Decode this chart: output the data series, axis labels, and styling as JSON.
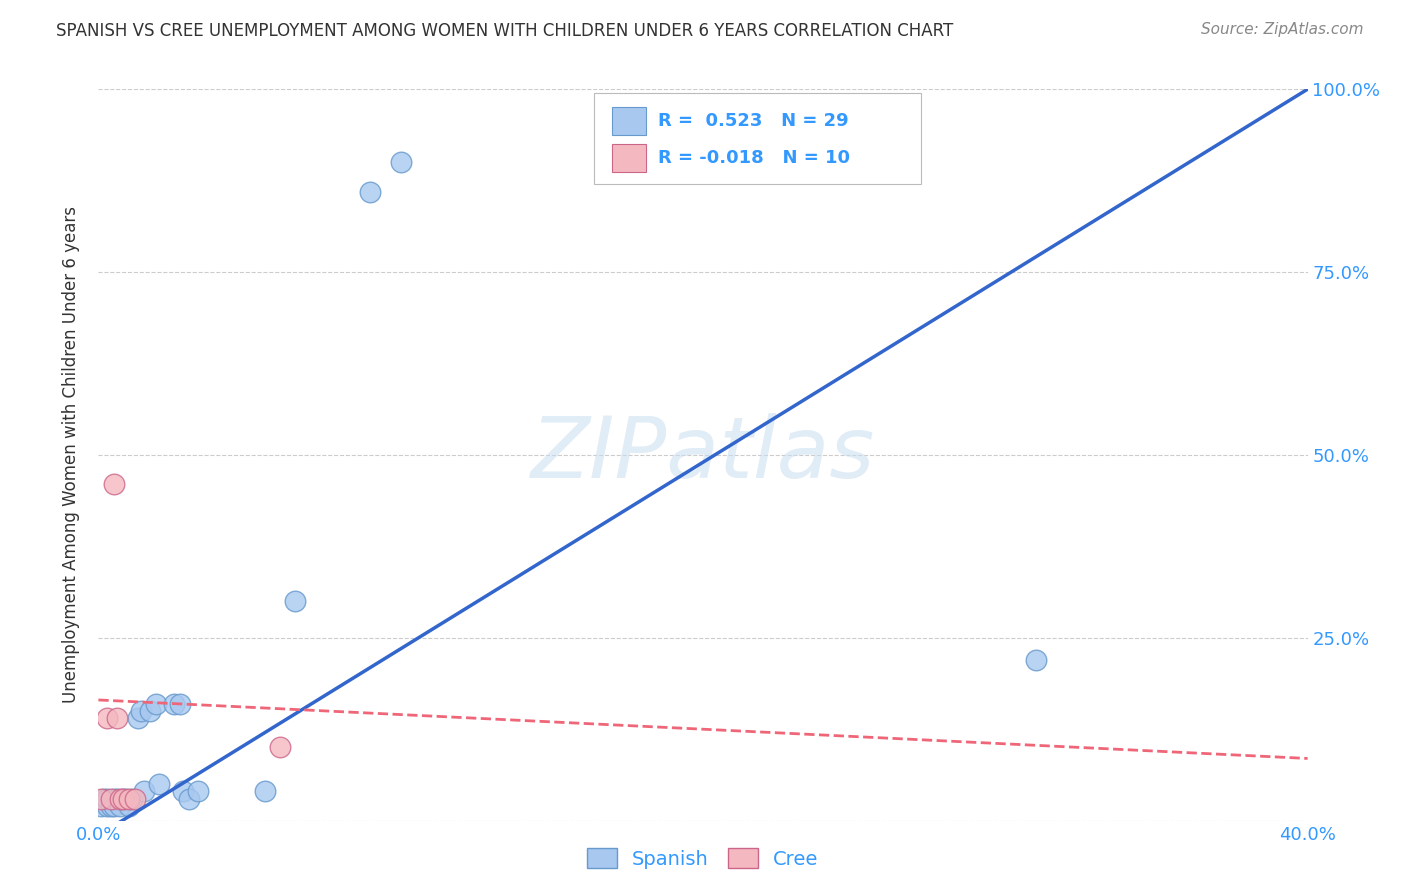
{
  "title": "SPANISH VS CREE UNEMPLOYMENT AMONG WOMEN WITH CHILDREN UNDER 6 YEARS CORRELATION CHART",
  "source": "Source: ZipAtlas.com",
  "ylabel": "Unemployment Among Women with Children Under 6 years",
  "watermark": "ZIPatlas",
  "spanish_R": 0.523,
  "spanish_N": 29,
  "cree_R": -0.018,
  "cree_N": 10,
  "xlim": [
    0.0,
    0.4
  ],
  "ylim": [
    0.0,
    1.0
  ],
  "xticks": [
    0.0,
    0.1,
    0.2,
    0.3,
    0.4
  ],
  "xtick_labels": [
    "0.0%",
    "",
    "",
    "",
    "40.0%"
  ],
  "ytick_labels": [
    "",
    "25.0%",
    "50.0%",
    "75.0%",
    "100.0%"
  ],
  "yticks": [
    0.0,
    0.25,
    0.5,
    0.75,
    1.0
  ],
  "spanish_x": [
    0.001,
    0.002,
    0.003,
    0.003,
    0.004,
    0.005,
    0.005,
    0.006,
    0.007,
    0.008,
    0.009,
    0.01,
    0.011,
    0.013,
    0.014,
    0.015,
    0.017,
    0.019,
    0.02,
    0.025,
    0.027,
    0.028,
    0.03,
    0.033,
    0.055,
    0.065,
    0.09,
    0.1,
    0.31
  ],
  "spanish_y": [
    0.02,
    0.03,
    0.02,
    0.03,
    0.02,
    0.03,
    0.02,
    0.03,
    0.02,
    0.03,
    0.03,
    0.02,
    0.03,
    0.14,
    0.15,
    0.04,
    0.15,
    0.16,
    0.05,
    0.16,
    0.16,
    0.04,
    0.03,
    0.04,
    0.04,
    0.3,
    0.86,
    0.9,
    0.22
  ],
  "cree_x": [
    0.001,
    0.003,
    0.004,
    0.005,
    0.006,
    0.007,
    0.008,
    0.01,
    0.012,
    0.06
  ],
  "cree_y": [
    0.03,
    0.14,
    0.03,
    0.46,
    0.14,
    0.03,
    0.03,
    0.03,
    0.03,
    0.1
  ],
  "spanish_color": "#a8c8f0",
  "spanish_edge": "#6699cc",
  "cree_color": "#f4b8c0",
  "cree_edge": "#cc6688",
  "trend_spanish_color": "#3366cc",
  "trend_cree_color": "#ee6677",
  "bg_color": "#ffffff",
  "grid_color": "#cccccc",
  "title_color": "#333333",
  "axis_color": "#3399ff"
}
